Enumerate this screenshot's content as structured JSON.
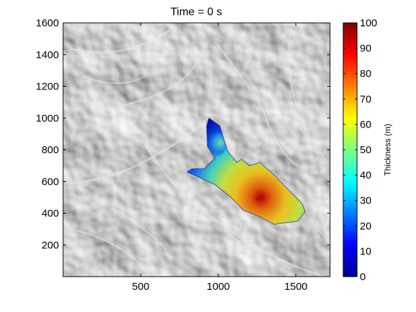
{
  "chart_data": {
    "type": "heatmap",
    "title": "Time = 0 s",
    "xlabel": "",
    "ylabel": "",
    "xlim": [
      0,
      1720
    ],
    "ylim": [
      0,
      1600
    ],
    "x_ticks": [
      500,
      1000,
      1500
    ],
    "y_ticks": [
      200,
      400,
      600,
      800,
      1000,
      1200,
      1400,
      1600
    ],
    "background": "grayscale hillshade terrain",
    "colormap": "jet",
    "colorbar": {
      "label": "Thickness (m)",
      "range": [
        0,
        100
      ],
      "ticks": [
        0,
        10,
        20,
        30,
        40,
        50,
        60,
        70,
        80,
        90,
        100
      ],
      "placement": "right"
    },
    "deposit": {
      "outline": [
        [
          940,
          1000
        ],
        [
          1010,
          950
        ],
        [
          1060,
          790
        ],
        [
          1120,
          720
        ],
        [
          1150,
          740
        ],
        [
          1200,
          700
        ],
        [
          1270,
          720
        ],
        [
          1360,
          640
        ],
        [
          1440,
          560
        ],
        [
          1540,
          460
        ],
        [
          1560,
          410
        ],
        [
          1510,
          350
        ],
        [
          1360,
          330
        ],
        [
          1260,
          380
        ],
        [
          1160,
          420
        ],
        [
          1070,
          510
        ],
        [
          980,
          580
        ],
        [
          890,
          620
        ],
        [
          800,
          660
        ],
        [
          830,
          680
        ],
        [
          910,
          680
        ],
        [
          980,
          750
        ],
        [
          930,
          820
        ],
        [
          925,
          950
        ]
      ],
      "peak": {
        "x": 1250,
        "y": 490,
        "thickness": 100
      },
      "secondary_peak": {
        "x": 990,
        "y": 840,
        "thickness": 35
      }
    }
  }
}
